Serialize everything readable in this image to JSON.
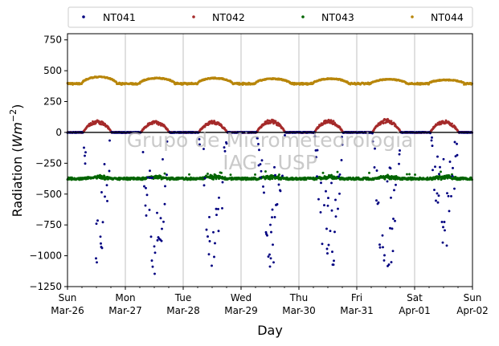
{
  "chart_data": {
    "type": "scatter",
    "xlabel": "Day",
    "ylabel_main": "Radiation (",
    "ylabel_unit": "Wm",
    "ylabel_exp": "−2",
    "ylabel_close": ")",
    "ylim": [
      -1250,
      800
    ],
    "xlim": [
      "2017-03-26",
      "2017-04-02"
    ],
    "yticks": [
      -1250,
      -1000,
      -750,
      -500,
      -250,
      0,
      250,
      500,
      750
    ],
    "ytick_labels": [
      "−1250",
      "−1000",
      "−750",
      "−500",
      "−250",
      "0",
      "250",
      "500",
      "750"
    ],
    "xticks": [
      {
        "date": "2017-03-26",
        "day": "Sun",
        "date_label": "Mar-26"
      },
      {
        "date": "2017-03-27",
        "day": "Mon",
        "date_label": "Mar-27"
      },
      {
        "date": "2017-03-28",
        "day": "Tue",
        "date_label": "Mar-28"
      },
      {
        "date": "2017-03-29",
        "day": "Wed",
        "date_label": "Mar-29"
      },
      {
        "date": "2017-03-30",
        "day": "Thu",
        "date_label": "Mar-30"
      },
      {
        "date": "2017-03-31",
        "day": "Fri",
        "date_label": "Mar-31"
      },
      {
        "date": "2017-04-01",
        "day": "Sat",
        "date_label": "Apr-01"
      },
      {
        "date": "2017-04-02",
        "day": "Sun",
        "date_label": "Apr-02"
      }
    ],
    "grid": "vertical",
    "legend_position": "top",
    "watermark": [
      "Grupo de Micrometeorologia",
      "IAG - USP"
    ],
    "series": [
      {
        "name": "NT041",
        "color": "#000080",
        "baseline": 0,
        "daily_min": [
          -1150,
          -1160,
          -1100,
          -1120,
          -1230,
          -1230,
          -1000
        ],
        "daily_peak_hour": 12
      },
      {
        "name": "NT042",
        "color": "#a52a2a",
        "baseline": 0,
        "daily_max": [
          100,
          95,
          95,
          105,
          105,
          110,
          100
        ],
        "daily_peak_hour": 12
      },
      {
        "name": "NT043",
        "color": "#006400",
        "baseline": -375,
        "range": [
          -410,
          -320
        ]
      },
      {
        "name": "NT044",
        "color": "#b8860b",
        "baseline": 400,
        "daily_max": [
          450,
          440,
          440,
          435,
          435,
          430,
          425
        ],
        "range": [
          380,
          455
        ]
      }
    ]
  }
}
